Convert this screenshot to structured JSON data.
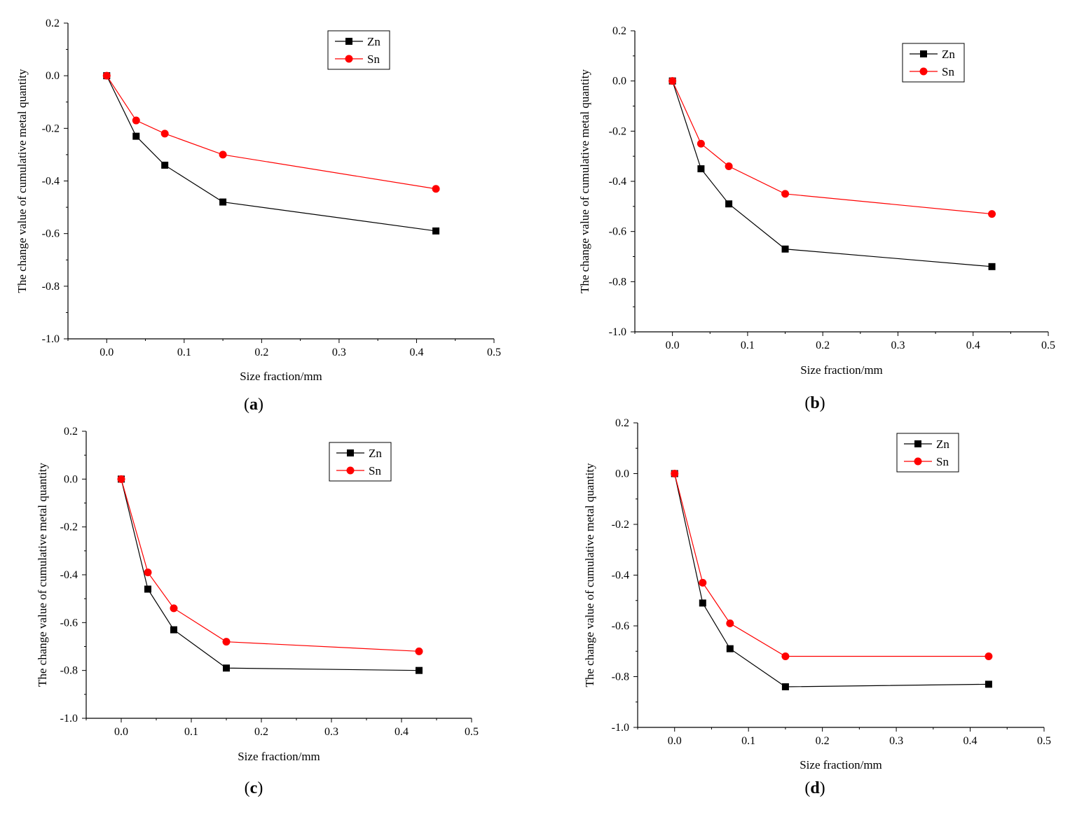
{
  "figure": {
    "panels": [
      "a",
      "b",
      "c",
      "d"
    ]
  },
  "colors": {
    "Zn": "#000000",
    "Sn": "#ff0000",
    "axis": "#000000"
  },
  "chart_data": [
    {
      "type": "line",
      "caption_letter": "a",
      "caption_open": "(",
      "caption_close": ")",
      "xlabel": "Size fraction/mm",
      "ylabel": "The change value of cumulative metal quantity",
      "xlim": [
        -0.05,
        0.5
      ],
      "ylim": [
        -1.0,
        0.2
      ],
      "xticks": [
        "0.0",
        "0.1",
        "0.2",
        "0.3",
        "0.4",
        "0.5"
      ],
      "yticks": [
        "-1.0",
        "-0.8",
        "-0.6",
        "-0.4",
        "-0.2",
        "0.0",
        "0.2"
      ],
      "legend_position": "top-right",
      "x": [
        0,
        0.038,
        0.075,
        0.15,
        0.425
      ],
      "series": [
        {
          "name": "Zn",
          "marker": "square",
          "values": [
            0,
            -0.23,
            -0.34,
            -0.48,
            -0.59
          ]
        },
        {
          "name": "Sn",
          "marker": "circle",
          "values": [
            0,
            -0.17,
            -0.22,
            -0.3,
            -0.43
          ]
        }
      ]
    },
    {
      "type": "line",
      "caption_letter": "b",
      "caption_open": "(",
      "caption_close": ")",
      "xlabel": "Size fraction/mm",
      "ylabel": "The change value of cumulative metal quantity",
      "xlim": [
        -0.05,
        0.5
      ],
      "ylim": [
        -1.0,
        0.2
      ],
      "xticks": [
        "0.0",
        "0.1",
        "0.2",
        "0.3",
        "0.4",
        "0.5"
      ],
      "yticks": [
        "-1.0",
        "-0.8",
        "-0.6",
        "-0.4",
        "-0.2",
        "0.0",
        "0.2"
      ],
      "legend_position": "top-right",
      "x": [
        0,
        0.038,
        0.075,
        0.15,
        0.425
      ],
      "series": [
        {
          "name": "Zn",
          "marker": "square",
          "values": [
            0,
            -0.35,
            -0.49,
            -0.67,
            -0.74
          ]
        },
        {
          "name": "Sn",
          "marker": "circle",
          "values": [
            0,
            -0.25,
            -0.34,
            -0.45,
            -0.53
          ]
        }
      ]
    },
    {
      "type": "line",
      "caption_letter": "c",
      "caption_open": "(",
      "caption_close": ")",
      "xlabel": "Size fraction/mm",
      "ylabel": "The change value of cumulative metal quantity",
      "xlim": [
        -0.05,
        0.5
      ],
      "ylim": [
        -1.0,
        0.2
      ],
      "xticks": [
        "0.0",
        "0.1",
        "0.2",
        "0.3",
        "0.4",
        "0.5"
      ],
      "yticks": [
        "-1.0",
        "-0.8",
        "-0.6",
        "-0.4",
        "-0.2",
        "0.0",
        "0.2"
      ],
      "legend_position": "top-right",
      "x": [
        0,
        0.038,
        0.075,
        0.15,
        0.425
      ],
      "series": [
        {
          "name": "Zn",
          "marker": "square",
          "values": [
            0,
            -0.46,
            -0.63,
            -0.79,
            -0.8
          ]
        },
        {
          "name": "Sn",
          "marker": "circle",
          "values": [
            0,
            -0.39,
            -0.54,
            -0.68,
            -0.72
          ]
        }
      ]
    },
    {
      "type": "line",
      "caption_letter": "d",
      "caption_open": "(",
      "caption_close": ")",
      "xlabel": "Size fraction/mm",
      "ylabel": "The change value of cumulative metal quantity",
      "xlim": [
        -0.05,
        0.5
      ],
      "ylim": [
        -1.0,
        0.2
      ],
      "xticks": [
        "0.0",
        "0.1",
        "0.2",
        "0.3",
        "0.4",
        "0.5"
      ],
      "yticks": [
        "-1.0",
        "-0.8",
        "-0.6",
        "-0.4",
        "-0.2",
        "0.0",
        "0.2"
      ],
      "legend_position": "top-right",
      "x": [
        0,
        0.038,
        0.075,
        0.15,
        0.425
      ],
      "series": [
        {
          "name": "Zn",
          "marker": "square",
          "values": [
            0,
            -0.51,
            -0.69,
            -0.84,
            -0.83
          ]
        },
        {
          "name": "Sn",
          "marker": "circle",
          "values": [
            0,
            -0.43,
            -0.59,
            -0.72,
            -0.72
          ]
        }
      ]
    }
  ]
}
